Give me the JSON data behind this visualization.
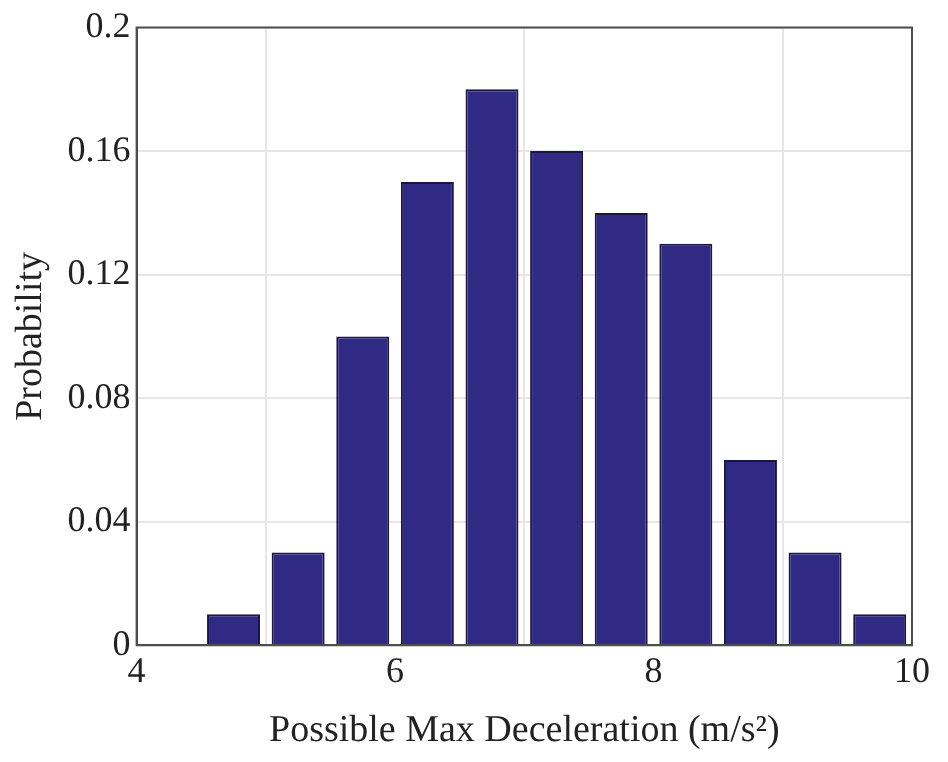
{
  "chart_data": {
    "type": "histogram",
    "xlabel": "Possible Max Deceleration (m/s²)",
    "ylabel": "Probability",
    "bins": [
      4.5,
      5,
      5.5,
      6,
      6.5,
      7,
      7.5,
      8,
      8.5,
      9,
      9.5,
      10
    ],
    "values": [
      0.01,
      0.03,
      0.1,
      0.15,
      0.18,
      0.16,
      0.14,
      0.13,
      0.06,
      0.03,
      0.01
    ],
    "color": "#302a85",
    "xlim": [
      4,
      10
    ],
    "xticks": [
      4,
      6,
      8,
      10
    ],
    "ylim": [
      0,
      0.2
    ],
    "yticks": [
      0,
      0.04,
      0.08,
      0.12,
      0.16,
      0.2
    ],
    "grid": true
  }
}
